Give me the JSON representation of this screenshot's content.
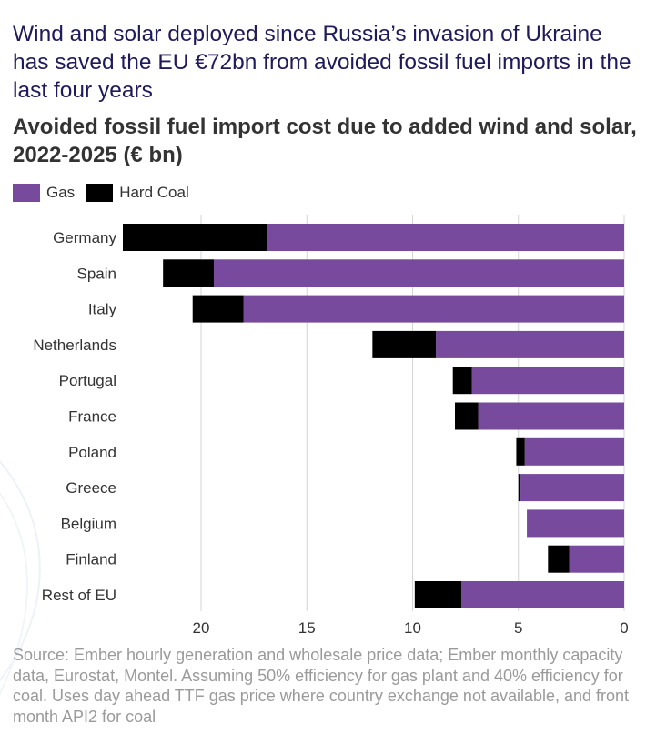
{
  "title": "Wind and solar deployed since Russia’s invasion of Ukraine has saved the EU €72bn from avoided fossil fuel imports in the last four years",
  "subtitle": "Avoided fossil fuel import cost due to added wind and solar, 2022-2025 (€ bn)",
  "source": "Source: Ember hourly generation and wholesale price data; Ember monthly capacity data, Eurostat, Montel. Assuming 50% efficiency for gas plant and 40% efficiency for coal. Uses day ahead TTF gas price where country exchange not available, and front month API2 for coal",
  "colors": {
    "gas": "#774a9e",
    "coal": "#000000",
    "grid": "#d4d4d4",
    "title": "#1f1a5c"
  },
  "chart_data": {
    "type": "bar",
    "orientation": "horizontal",
    "stacked": true,
    "x_reversed": true,
    "categories": [
      "Germany",
      "Spain",
      "Italy",
      "Netherlands",
      "Portugal",
      "France",
      "Poland",
      "Greece",
      "Belgium",
      "Finland",
      "Rest of EU"
    ],
    "series": [
      {
        "name": "Gas",
        "color": "#774a9e",
        "values": [
          16.9,
          19.4,
          18.0,
          8.9,
          7.2,
          6.9,
          4.7,
          4.9,
          4.6,
          2.6,
          7.7
        ]
      },
      {
        "name": "Hard Coal",
        "color": "#000000",
        "values": [
          6.8,
          2.4,
          2.4,
          3.0,
          0.9,
          1.1,
          0.4,
          0.1,
          0.0,
          1.0,
          2.2
        ]
      }
    ],
    "xlim": [
      0,
      23.7
    ],
    "xticks": [
      20,
      15,
      10,
      5,
      0
    ],
    "xlabel": "",
    "ylabel": "",
    "grid": true,
    "legend": "top-left"
  }
}
